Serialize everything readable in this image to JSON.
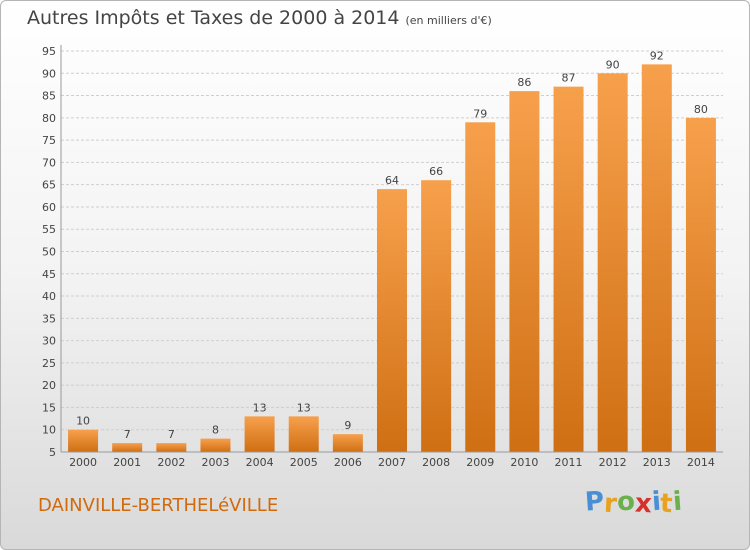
{
  "title": "Autres Impôts et Taxes de 2000 à 2014",
  "unit": "(en milliers d'€)",
  "commune": "DAINVILLE-BERTHELéVILLE",
  "brand": {
    "letters": [
      "P",
      "r",
      "o",
      "x",
      "i",
      "t",
      "i"
    ],
    "colors": [
      "#4a8fd6",
      "#e8a21f",
      "#6ab04c",
      "#d6322c",
      "#4a8fd6",
      "#e8a21f",
      "#6ab04c"
    ]
  },
  "colors": {
    "bar_light": "#f7a04c",
    "bar_dark": "#cf6f13",
    "grid": "#cfcfcf",
    "text": "#444444"
  },
  "chart_data": {
    "type": "bar",
    "categories": [
      "2000",
      "2001",
      "2002",
      "2003",
      "2004",
      "2005",
      "2006",
      "2007",
      "2008",
      "2009",
      "2010",
      "2011",
      "2012",
      "2013",
      "2014"
    ],
    "values": [
      10,
      7,
      7,
      8,
      13,
      13,
      9,
      64,
      66,
      79,
      86,
      87,
      90,
      92,
      80
    ],
    "ylim": [
      5,
      95
    ],
    "yticks": [
      5,
      10,
      15,
      20,
      25,
      30,
      35,
      40,
      45,
      50,
      55,
      60,
      65,
      70,
      75,
      80,
      85,
      90,
      95
    ],
    "grid": true
  }
}
